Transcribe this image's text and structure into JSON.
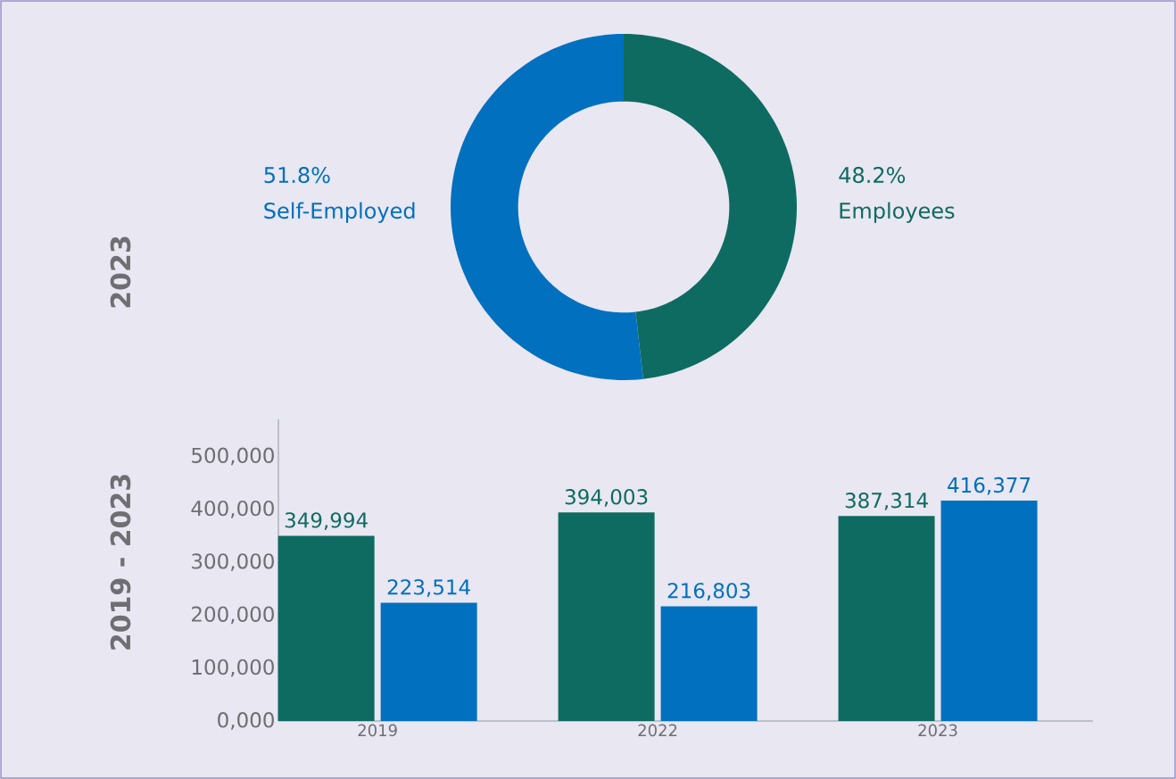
{
  "chart_data": [
    {
      "type": "donut",
      "title": "2023",
      "categories": [
        "Employees",
        "Self-Employed"
      ],
      "values": [
        48.2,
        51.8
      ],
      "colors": [
        "#0e6b61",
        "#0070bf"
      ],
      "value_labels": [
        "48.2%",
        "51.8%"
      ]
    },
    {
      "type": "bar",
      "ylabel": "2019 - 2023",
      "categories": [
        "2019",
        "2022",
        "2023"
      ],
      "series": [
        {
          "color": "#0e6b61",
          "values": [
            349994,
            394003,
            387314
          ],
          "value_labels": [
            "349,994",
            "394,003",
            "387,314"
          ]
        },
        {
          "color": "#0070bf",
          "values": [
            223514,
            216803,
            416377
          ],
          "value_labels": [
            "223,514",
            "216,803",
            "416,377"
          ]
        }
      ],
      "ylim": [
        0,
        570000
      ],
      "yticks": [
        {
          "value": 0,
          "label": "0,000"
        },
        {
          "value": 100000,
          "label": "100,000"
        },
        {
          "value": 200000,
          "label": "200,000"
        },
        {
          "value": 300000,
          "label": "300,000"
        },
        {
          "value": 400000,
          "label": "400,000"
        },
        {
          "value": 500000,
          "label": "500,000"
        }
      ]
    }
  ]
}
